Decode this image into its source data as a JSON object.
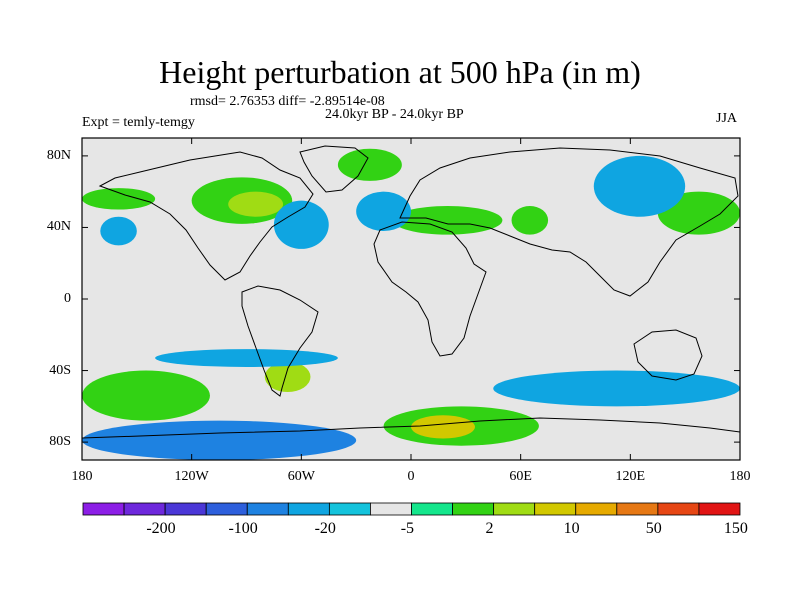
{
  "title": "Height perturbation at 500 hPa (in m)",
  "stats": "rmsd= 2.76353 diff= -2.89514e-08",
  "period": "24.0kyr BP - 24.0kyr BP",
  "experiment": "Expt = temly-temgy",
  "season": "JJA",
  "map": {
    "projection": "cylindrical equidistant",
    "lon_range": [
      -180,
      180
    ],
    "lat_range": [
      -90,
      90
    ],
    "lat_ticks": [
      {
        "value": 80,
        "label": "80N"
      },
      {
        "value": 40,
        "label": "40N"
      },
      {
        "value": 0,
        "label": "0"
      },
      {
        "value": -40,
        "label": "40S"
      },
      {
        "value": -80,
        "label": "80S"
      }
    ],
    "lon_ticks": [
      {
        "value": -180,
        "label": "180"
      },
      {
        "value": -120,
        "label": "120W"
      },
      {
        "value": -60,
        "label": "60W"
      },
      {
        "value": 0,
        "label": "0"
      },
      {
        "value": 60,
        "label": "60E"
      },
      {
        "value": 120,
        "label": "120E"
      },
      {
        "value": 180,
        "label": "180"
      }
    ],
    "background_color": "#e6e6e6",
    "field_regions": [
      {
        "name": "north-pacific-positive",
        "level": 2,
        "lon": [
          -180,
          -140
        ],
        "lat": [
          50,
          62
        ]
      },
      {
        "name": "north-america-positive",
        "level": 2,
        "lon": [
          -120,
          -65
        ],
        "lat": [
          42,
          68
        ]
      },
      {
        "name": "north-america-core",
        "level": 3,
        "lon": [
          -100,
          -70
        ],
        "lat": [
          46,
          60
        ]
      },
      {
        "name": "greenland-positive",
        "level": 2,
        "lon": [
          -40,
          -5
        ],
        "lat": [
          66,
          84
        ]
      },
      {
        "name": "europe-positive",
        "level": 2,
        "lon": [
          -10,
          50
        ],
        "lat": [
          36,
          52
        ]
      },
      {
        "name": "central-asia-positive",
        "level": 2,
        "lon": [
          55,
          75
        ],
        "lat": [
          36,
          52
        ]
      },
      {
        "name": "east-asia-positive",
        "level": 2,
        "lon": [
          135,
          180
        ],
        "lat": [
          36,
          60
        ]
      },
      {
        "name": "south-america-positive",
        "level": 3,
        "lon": [
          -80,
          -55
        ],
        "lat": [
          -52,
          -35
        ]
      },
      {
        "name": "south-atlantic-positive",
        "level": 2,
        "lon": [
          -15,
          70
        ],
        "lat": [
          -82,
          -60
        ]
      },
      {
        "name": "south-atlantic-core",
        "level": 4,
        "lon": [
          0,
          35
        ],
        "lat": [
          -78,
          -65
        ]
      },
      {
        "name": "southern-ocean-positive",
        "level": 2,
        "lon": [
          -180,
          -110
        ],
        "lat": [
          -68,
          -40
        ]
      },
      {
        "name": "west-pacific-negative",
        "level": -2,
        "lon": [
          -170,
          -150
        ],
        "lat": [
          30,
          46
        ]
      },
      {
        "name": "northwest-atlantic-negative",
        "level": -2,
        "lon": [
          -75,
          -45
        ],
        "lat": [
          28,
          55
        ]
      },
      {
        "name": "north-atlantic-negative",
        "level": -2,
        "lon": [
          -30,
          0
        ],
        "lat": [
          38,
          60
        ]
      },
      {
        "name": "siberia-negative",
        "level": -2,
        "lon": [
          100,
          150
        ],
        "lat": [
          46,
          80
        ]
      },
      {
        "name": "southeast-pacific-negative",
        "level": -2,
        "lon": [
          -140,
          -40
        ],
        "lat": [
          -38,
          -28
        ]
      },
      {
        "name": "indian-ocean-negative",
        "level": -2,
        "lon": [
          45,
          180
        ],
        "lat": [
          -60,
          -40
        ]
      },
      {
        "name": "antarctic-negative",
        "level": -3,
        "lon": [
          -180,
          -30
        ],
        "lat": [
          -90,
          -68
        ]
      }
    ]
  },
  "colorbar": {
    "colors": [
      "#8c1ee6",
      "#6e28dc",
      "#4b37d7",
      "#2d5fdc",
      "#1e82e1",
      "#0fa5e1",
      "#14c3dc",
      "#e6e6e6",
      "#14e68c",
      "#32d214",
      "#a0dc14",
      "#d2c800",
      "#e6aa00",
      "#e67814",
      "#e64614",
      "#e11414"
    ],
    "labels": [
      "-200",
      "-100",
      "-20",
      "-5",
      "2",
      "10",
      "50",
      "150"
    ]
  }
}
